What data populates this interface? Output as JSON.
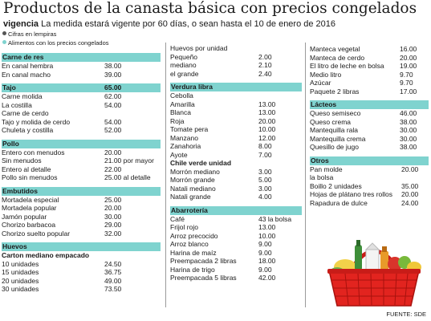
{
  "title": "Productos de la canasta básica con precios congelados",
  "vigencia": {
    "label": "vigencia",
    "text": "La medida estará vigente por 60 días, o sean hasta el 10 de enero de 2016"
  },
  "notes": [
    {
      "text": "Cifras en lempiras",
      "color": "#555555"
    },
    {
      "text": "Alimentos con los precios congelados",
      "color": "#7fd3cf"
    }
  ],
  "source": "FUENTE: SDE",
  "colors": {
    "accent": "#7fd3cf",
    "basket": "#e2241f"
  },
  "illustration": "basket-of-groceries",
  "col1": [
    {
      "title": "Carne de res",
      "items": [
        {
          "label": "En canal hembra",
          "value": "38.00"
        },
        {
          "label": "En canal macho",
          "value": "39.00"
        }
      ]
    },
    {
      "title": "Tajo",
      "title_value": "65.00",
      "items": [
        {
          "label": "Carne molida",
          "value": "62.00"
        },
        {
          "label": "La costilla",
          "value": "54.00"
        },
        {
          "label": "Carne de cerdo",
          "value": ""
        },
        {
          "label": "Tajo y molida de cerdo",
          "value": "54.00"
        },
        {
          "label": "Chuleta y costilla",
          "value": "52.00"
        }
      ]
    },
    {
      "title": "Pollo",
      "items": [
        {
          "label": "Entero con menudos",
          "value": "20.00"
        },
        {
          "label": "Sin menudos",
          "value": "21.00 por mayor"
        },
        {
          "label": "Entero al detalle",
          "value": "22.00"
        },
        {
          "label": "Pollo sin menudos",
          "value": "25.00 al detalle"
        }
      ]
    },
    {
      "title": "Embutidos",
      "items": [
        {
          "label": "Mortadela especial",
          "value": "25.00"
        },
        {
          "label": "Mortadela popular",
          "value": "20.00"
        },
        {
          "label": "Jamón popular",
          "value": "30.00"
        },
        {
          "label": "Chorizo barbacoa",
          "value": "29.00"
        },
        {
          "label": "Chorizo suelto popular",
          "value": "32.00"
        }
      ]
    },
    {
      "title": "Huevos",
      "subtitle": "Carton mediano empacado",
      "items": [
        {
          "label": "10 unidades",
          "value": "24.50"
        },
        {
          "label": "15 unidades",
          "value": "36.75"
        },
        {
          "label": "20 unidades",
          "value": "49.00"
        },
        {
          "label": "30 unidades",
          "value": "73.50"
        }
      ]
    }
  ],
  "col2": [
    {
      "plain_title": "Huevos por unidad",
      "items": [
        {
          "label": "Pequeño",
          "value": "2.00"
        },
        {
          "label": "mediano",
          "value": "2.10"
        },
        {
          "label": "el grande",
          "value": "2.40"
        }
      ]
    },
    {
      "title": "Verdura libra",
      "items": [
        {
          "label": "Cebolla",
          "value": ""
        },
        {
          "label": "Amarilla",
          "value": "13.00"
        },
        {
          "label": "Blanca",
          "value": "13.00"
        },
        {
          "label": "Roja",
          "value": "20.00"
        },
        {
          "label": "Tomate pera",
          "value": "10.00"
        },
        {
          "label": "Manzano",
          "value": "12.00"
        },
        {
          "label": "Zanahoria",
          "value": "8.00"
        },
        {
          "label": "Ayote",
          "value": "7.00"
        }
      ],
      "subtitle2": "Chile verde unidad",
      "items2": [
        {
          "label": "Morrón mediano",
          "value": "3.00"
        },
        {
          "label": "Morrón grande",
          "value": "5.00"
        },
        {
          "label": "Natali mediano",
          "value": "3.00"
        },
        {
          "label": "Natali grande",
          "value": "4.00"
        }
      ]
    },
    {
      "title": "Abarrotería",
      "items": [
        {
          "label": "Café",
          "value": "43 la bolsa"
        },
        {
          "label": "Frijol rojo",
          "value": "13.00"
        },
        {
          "label": "Arroz precocido",
          "value": "10.00"
        },
        {
          "label": "Arroz blanco",
          "value": "9.00"
        },
        {
          "label": "Harina de maíz",
          "value": "9.00"
        },
        {
          "label": "Preempacada 2 libras",
          "value": "18.00"
        },
        {
          "label": "Harina de trigo",
          "value": "9.00"
        },
        {
          "label": "Preempacada 5 libras",
          "value": "42.00"
        }
      ]
    }
  ],
  "col3": [
    {
      "items": [
        {
          "label": "Manteca vegetal",
          "value": "16.00"
        },
        {
          "label": "Manteca de cerdo",
          "value": "20.00"
        },
        {
          "label": "El litro de leche en bolsa",
          "value": "19.00"
        },
        {
          "label": "Medio litro",
          "value": "9.70"
        },
        {
          "label": "Azúcar",
          "value": "9.70"
        },
        {
          "label": "Paquete 2 libras",
          "value": "17.00"
        }
      ]
    },
    {
      "title": "Lácteos",
      "items": [
        {
          "label": "Queso semiseco",
          "value": "46.00"
        },
        {
          "label": "Queso crema",
          "value": "38.00"
        },
        {
          "label": "Mantequilla rala",
          "value": "30.00"
        },
        {
          "label": "Mantequilla crema",
          "value": "30.00"
        },
        {
          "label": "Quesillo de jugo",
          "value": "38.00"
        }
      ]
    },
    {
      "title": "Otros",
      "items": [
        {
          "label": "Pan molde",
          "value": "20.00"
        },
        {
          "label": "la bolsa",
          "value": ""
        },
        {
          "label": "Boillo 2 unidades",
          "value": "35.00"
        },
        {
          "label": "Hojas de plátano tres rollos",
          "value": "20.00"
        },
        {
          "label": "Rapadura de dulce",
          "value": "24.00"
        }
      ]
    }
  ]
}
